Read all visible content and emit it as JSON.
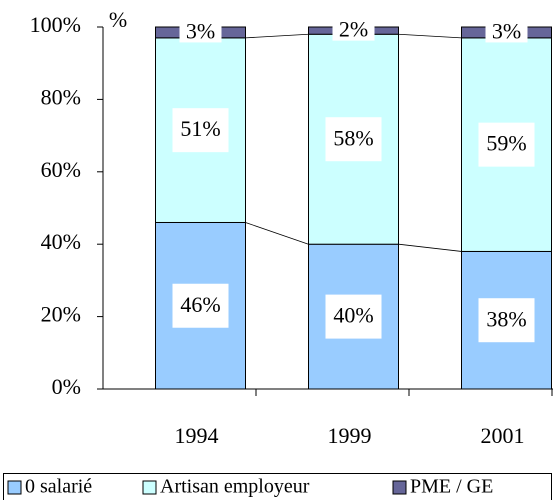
{
  "chart_data": {
    "type": "stacked_bar",
    "y_label": "%",
    "categories": [
      "1994",
      "1999",
      "2001"
    ],
    "series": [
      {
        "name": "0 salarié",
        "color": "#99ccff",
        "values": [
          46,
          40,
          38
        ],
        "value_labels": [
          "46%",
          "40%",
          "38%"
        ]
      },
      {
        "name": "Artisan employeur",
        "color": "#ccffff",
        "values": [
          51,
          58,
          59
        ],
        "value_labels": [
          "51%",
          "58%",
          "59%"
        ]
      },
      {
        "name": "PME / GE",
        "color": "#666699",
        "values": [
          3,
          2,
          3
        ],
        "value_labels": [
          "3%",
          "2%",
          "3%"
        ]
      }
    ],
    "ylim": [
      0,
      100
    ],
    "yticks": [
      {
        "value": 0,
        "label": "0%"
      },
      {
        "value": 20,
        "label": "20%"
      },
      {
        "value": 40,
        "label": "40%"
      },
      {
        "value": 60,
        "label": "60%"
      },
      {
        "value": 80,
        "label": "80%"
      },
      {
        "value": 100,
        "label": "100%"
      }
    ],
    "grid": false,
    "series_lines": true,
    "legend": "bottom"
  }
}
